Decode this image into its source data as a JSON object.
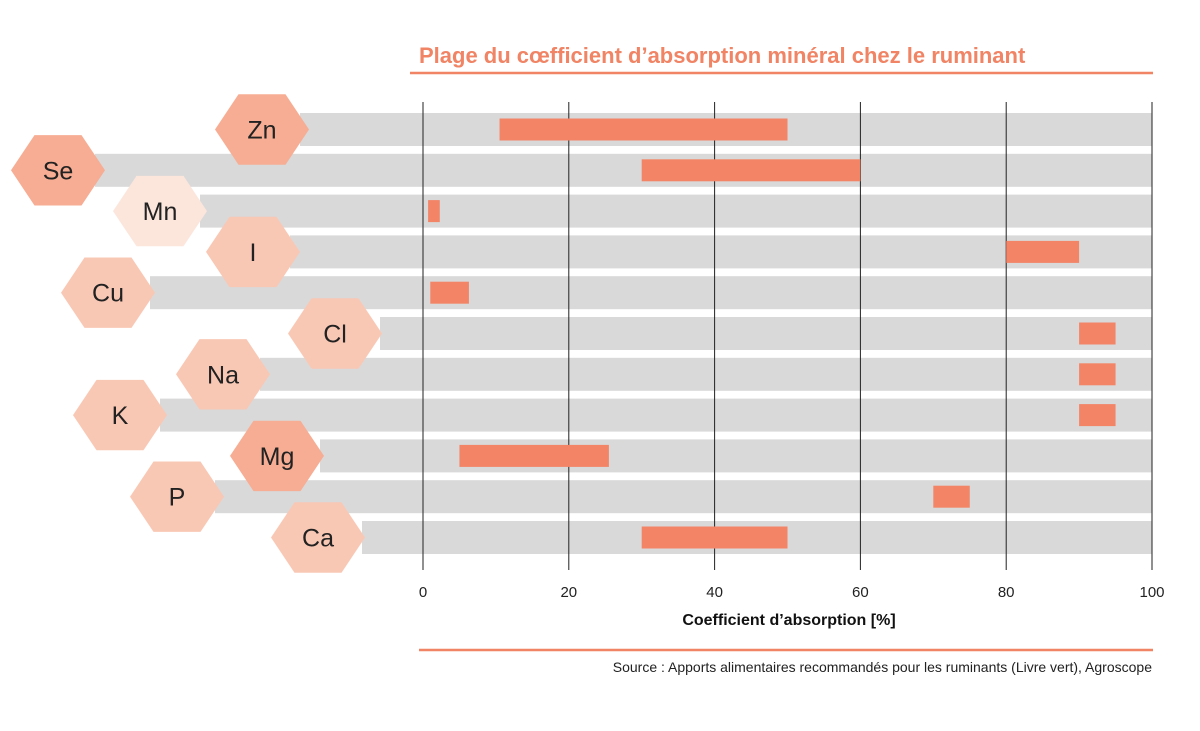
{
  "colors": {
    "accent": "#f08464",
    "bar": "#f38466",
    "stripe": "#d9d9d9",
    "grid": "#222222",
    "hex_dark": "#f6ad93",
    "hex_mid": "#f9c8b5",
    "hex_light": "#fce6dc"
  },
  "chart_data": {
    "type": "bar",
    "orientation": "horizontal-range",
    "title": "Plage du cœfficient d’absorption minéral chez le ruminant",
    "xlabel": "Coefficient d’absorption [%]",
    "ylabel": "",
    "xlim": [
      0,
      100
    ],
    "xticks": [
      "0",
      "20",
      "40",
      "60",
      "80",
      "100"
    ],
    "grid": "vertical",
    "categories": [
      "Zn",
      "Se",
      "Mn",
      "I",
      "Cu",
      "Cl",
      "Na",
      "K",
      "Mg",
      "P",
      "Ca"
    ],
    "ranges": [
      {
        "element": "Zn",
        "min": 10.5,
        "max": 50,
        "hex_shade": "dark"
      },
      {
        "element": "Se",
        "min": 30,
        "max": 60,
        "hex_shade": "dark"
      },
      {
        "element": "Mn",
        "min": 0.7,
        "max": 2.3,
        "hex_shade": "light"
      },
      {
        "element": "I",
        "min": 80,
        "max": 90,
        "hex_shade": "mid"
      },
      {
        "element": "Cu",
        "min": 1,
        "max": 6.3,
        "hex_shade": "mid"
      },
      {
        "element": "Cl",
        "min": 90,
        "max": 95,
        "hex_shade": "mid"
      },
      {
        "element": "Na",
        "min": 90,
        "max": 95,
        "hex_shade": "mid"
      },
      {
        "element": "K",
        "min": 90,
        "max": 95,
        "hex_shade": "mid"
      },
      {
        "element": "Mg",
        "min": 5,
        "max": 25.5,
        "hex_shade": "dark"
      },
      {
        "element": "P",
        "min": 70,
        "max": 75,
        "hex_shade": "mid"
      },
      {
        "element": "Ca",
        "min": 30,
        "max": 50,
        "hex_shade": "mid"
      }
    ],
    "source": "Source : Apports alimentaires recommandés pour les ruminants (Livre vert), Agroscope"
  }
}
